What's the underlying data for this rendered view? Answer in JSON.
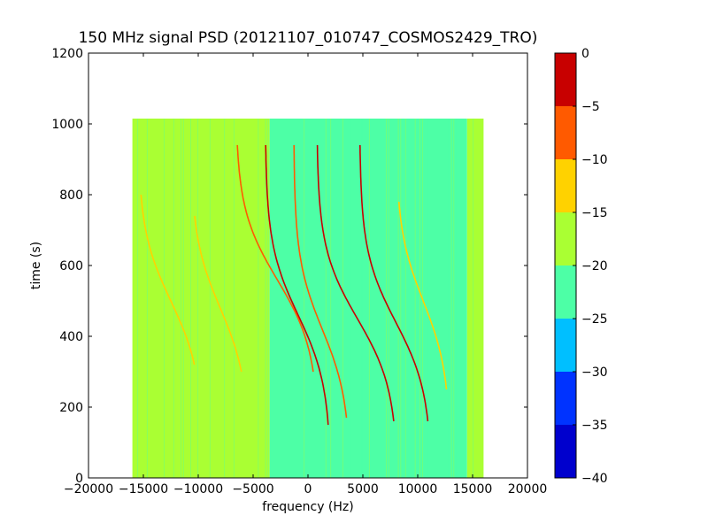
{
  "chart_data": {
    "type": "heatmap",
    "title": "150 MHz signal PSD (20121107_010747_COSMOS2429_TRO)",
    "xlabel": "frequency (Hz)",
    "ylabel": "time (s)",
    "xlim": [
      -20000,
      20000
    ],
    "ylim": [
      0,
      1200
    ],
    "xticks": [
      -20000,
      -15000,
      -10000,
      -5000,
      0,
      5000,
      10000,
      15000,
      20000
    ],
    "xtick_labels": [
      "−20000",
      "−15000",
      "−10000",
      "−5000",
      "0",
      "5000",
      "10000",
      "15000",
      "20000"
    ],
    "yticks": [
      0,
      200,
      400,
      600,
      800,
      1000,
      1200
    ],
    "ytick_labels": [
      "0",
      "200",
      "400",
      "600",
      "800",
      "1000",
      "1200"
    ],
    "data_extent": {
      "x": [
        -16000,
        16000
      ],
      "y": [
        0,
        1015
      ]
    },
    "colorbar": {
      "levels": [
        -40,
        -35,
        -30,
        -25,
        -20,
        -15,
        -10,
        -5,
        0
      ],
      "tick_labels": [
        "−40",
        "−35",
        "−30",
        "−25",
        "−20",
        "−15",
        "−10",
        "−5",
        "0"
      ],
      "colors": [
        "#0000cd",
        "#0033ff",
        "#00bfff",
        "#4dffa6",
        "#aaff33",
        "#ffd200",
        "#ff5a00",
        "#c80000"
      ]
    },
    "background_regions": [
      {
        "x": [
          -16000,
          -3500
        ],
        "level_range": [
          -20,
          -15
        ]
      },
      {
        "x": [
          -3500,
          14500
        ],
        "level_range": [
          -25,
          -20
        ]
      },
      {
        "x": [
          14500,
          16000
        ],
        "level_range": [
          -20,
          -15
        ]
      }
    ],
    "signal_tracks": [
      {
        "freq_center": 4500,
        "time_center": 450,
        "half_width": 3700,
        "time_start": 160,
        "time_end": 940,
        "level_range": [
          -5,
          0
        ]
      },
      {
        "freq_center": 8000,
        "time_center": 440,
        "half_width": 3300,
        "time_start": 160,
        "time_end": 940,
        "level_range": [
          -5,
          0
        ]
      },
      {
        "freq_center": -900,
        "time_center": 460,
        "half_width": 3000,
        "time_start": 150,
        "time_end": 940,
        "level_range": [
          -5,
          0
        ]
      },
      {
        "freq_center": 1300,
        "time_center": 420,
        "half_width": 2600,
        "time_start": 170,
        "time_end": 940,
        "level_range": [
          -10,
          -5
        ]
      },
      {
        "freq_center": -2800,
        "time_center": 560,
        "half_width": 3800,
        "time_start": 300,
        "time_end": 940,
        "level_range": [
          -10,
          -5
        ]
      },
      {
        "freq_center": 10500,
        "time_center": 500,
        "half_width": 2500,
        "time_start": 250,
        "time_end": 780,
        "level_range": [
          -15,
          -10
        ]
      },
      {
        "freq_center": -12500,
        "time_center": 500,
        "half_width": 3000,
        "time_start": 320,
        "time_end": 800,
        "level_range": [
          -15,
          -10
        ]
      },
      {
        "freq_center": -8000,
        "time_center": 480,
        "half_width": 2700,
        "time_start": 300,
        "time_end": 740,
        "level_range": [
          -15,
          -10
        ]
      }
    ]
  }
}
